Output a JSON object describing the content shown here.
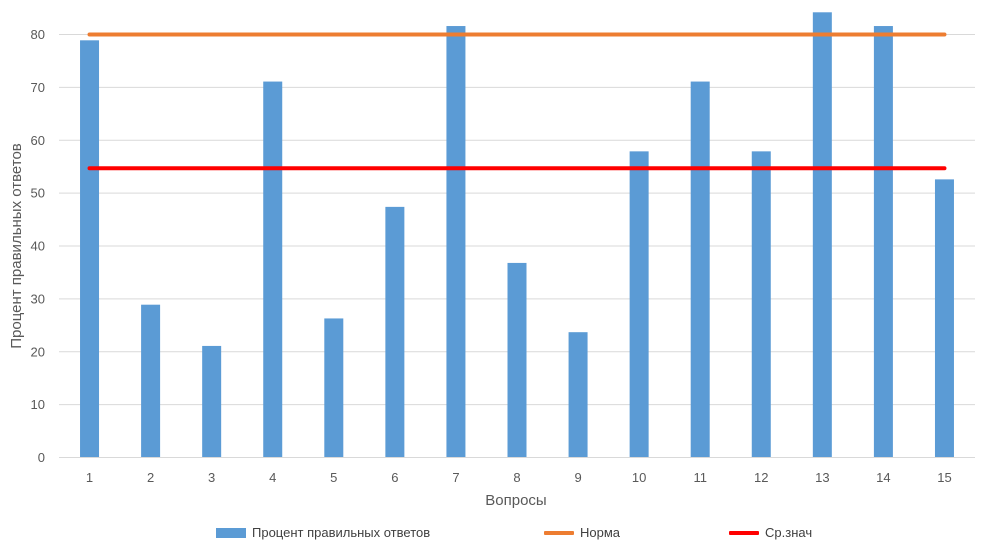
{
  "chart_data": {
    "type": "bar",
    "categories": [
      "1",
      "2",
      "3",
      "4",
      "5",
      "6",
      "7",
      "8",
      "9",
      "10",
      "11",
      "12",
      "13",
      "14",
      "15"
    ],
    "series": [
      {
        "name": "Процент правильных ответов",
        "type": "bar",
        "color": "#5B9BD5",
        "values": [
          78.9,
          28.9,
          21.1,
          71.1,
          26.3,
          47.4,
          81.6,
          36.8,
          23.7,
          57.9,
          71.1,
          57.9,
          84.2,
          81.6,
          52.6
        ]
      },
      {
        "name": "Норма",
        "type": "line",
        "color": "#ED7D31",
        "values": [
          80,
          80,
          80,
          80,
          80,
          80,
          80,
          80,
          80,
          80,
          80,
          80,
          80,
          80,
          80
        ]
      },
      {
        "name": "Ср.знач",
        "type": "line",
        "color": "#FF0000",
        "values": [
          54.7,
          54.7,
          54.7,
          54.7,
          54.7,
          54.7,
          54.7,
          54.7,
          54.7,
          54.7,
          54.7,
          54.7,
          54.7,
          54.7,
          54.7
        ]
      }
    ],
    "xlabel": "Вопросы",
    "ylabel": "Процент правильных ответов",
    "ylim": [
      0,
      80
    ],
    "yticks": [
      0,
      10,
      20,
      30,
      40,
      50,
      60,
      70,
      80
    ],
    "grid": true,
    "legend_position": "bottom"
  }
}
